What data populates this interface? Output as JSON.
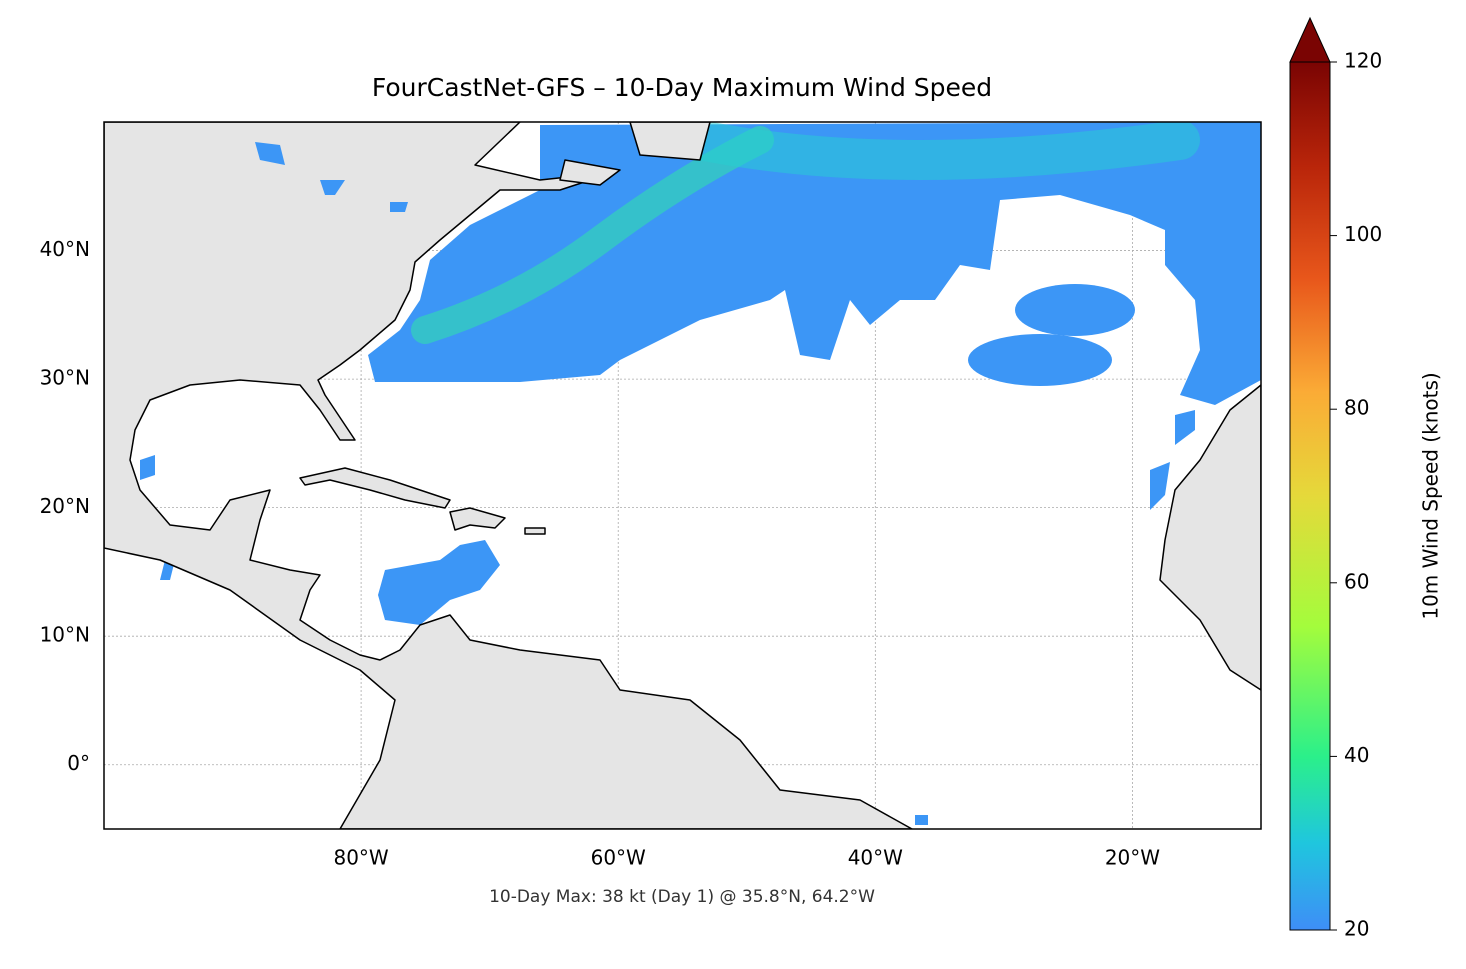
{
  "chart_data": {
    "type": "map",
    "title": "FourCastNet-GFS – 10-Day Maximum Wind Speed",
    "annotation": "10-Day Max: 38 kt (Day 1) @ 35.8°N, 64.2°W",
    "xlim": [
      -100,
      -10
    ],
    "ylim": [
      -5,
      50
    ],
    "xticks": [
      {
        "value": -80,
        "label": "80°W"
      },
      {
        "value": -60,
        "label": "60°W"
      },
      {
        "value": -40,
        "label": "40°W"
      },
      {
        "value": -20,
        "label": "20°W"
      }
    ],
    "yticks": [
      {
        "value": 0,
        "label": "0°"
      },
      {
        "value": 10,
        "label": "10°N"
      },
      {
        "value": 20,
        "label": "20°N"
      },
      {
        "value": 30,
        "label": "30°N"
      },
      {
        "value": 40,
        "label": "40°N"
      }
    ],
    "grid": true,
    "colorbar": {
      "label": "10m Wind Speed (knots)",
      "lim": [
        20,
        120
      ],
      "ticks": [
        20,
        40,
        60,
        80,
        100,
        120
      ],
      "extend": "max"
    }
  }
}
